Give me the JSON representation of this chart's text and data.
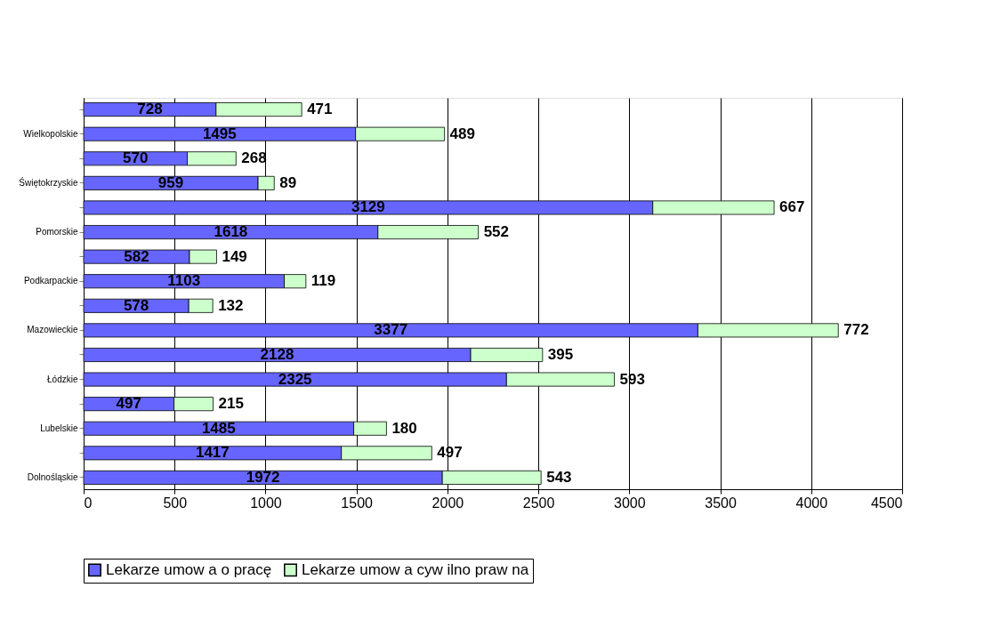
{
  "chart_data": {
    "type": "bar",
    "orientation": "horizontal",
    "stacked": true,
    "categories": [
      null,
      "Wielkopolskie",
      null,
      "Świętokrzyskie",
      null,
      "Pomorskie",
      null,
      "Podkarpackie",
      null,
      "Mazowieckie",
      null,
      "Łódzkie",
      null,
      "Lubelskie",
      null,
      "Dolnośląskie"
    ],
    "series": [
      {
        "name": "Lekarze umow a o pracę",
        "color": "#6666ff",
        "values": [
          728,
          1495,
          570,
          959,
          3129,
          1618,
          582,
          1103,
          578,
          3377,
          2128,
          2325,
          497,
          1485,
          1417,
          1972
        ]
      },
      {
        "name": "Lekarze umow a cyw ilno praw na",
        "color": "#ccffcc",
        "values": [
          471,
          489,
          268,
          89,
          667,
          552,
          149,
          119,
          132,
          772,
          395,
          593,
          215,
          180,
          497,
          543
        ]
      }
    ],
    "xlim": [
      0,
      4500
    ],
    "xticks": [
      0,
      500,
      1000,
      1500,
      2000,
      2500,
      3000,
      3500,
      4000,
      4500
    ],
    "grid": "x",
    "legend": "bottom",
    "data_labels": true
  }
}
